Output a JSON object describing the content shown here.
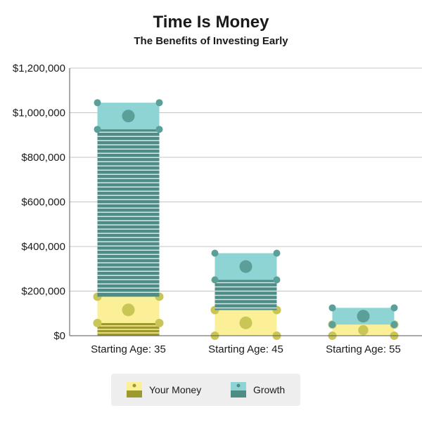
{
  "chart_data": {
    "type": "bar",
    "title": "Time Is Money",
    "subtitle": "The Benefits of Investing Early",
    "xlabel": "",
    "ylabel": "",
    "ylim": [
      0,
      1200000
    ],
    "yticks": [
      "$0",
      "$200,000",
      "$400,000",
      "$600,000",
      "$800,000",
      "$1,000,000",
      "$1,200,000"
    ],
    "ytick_values": [
      0,
      200000,
      400000,
      600000,
      800000,
      1000000,
      1200000
    ],
    "categories": [
      "Starting Age: 35",
      "Starting Age: 45",
      "Starting Age: 55"
    ],
    "stacked": true,
    "grid": true,
    "legend_position": "bottom",
    "series": [
      {
        "name": "Your Money",
        "values": [
          175000,
          115000,
          50000
        ],
        "color": "#fbef97",
        "accent": "#9c9a2c"
      },
      {
        "name": "Growth",
        "values": [
          870000,
          255000,
          75000
        ],
        "color": "#8ed4d4",
        "accent": "#4e8c86"
      }
    ]
  },
  "legend": {
    "items": [
      {
        "label": "Your Money",
        "icon": "dollar-bill-icon"
      },
      {
        "label": "Growth",
        "icon": "dollar-bill-icon"
      }
    ]
  }
}
